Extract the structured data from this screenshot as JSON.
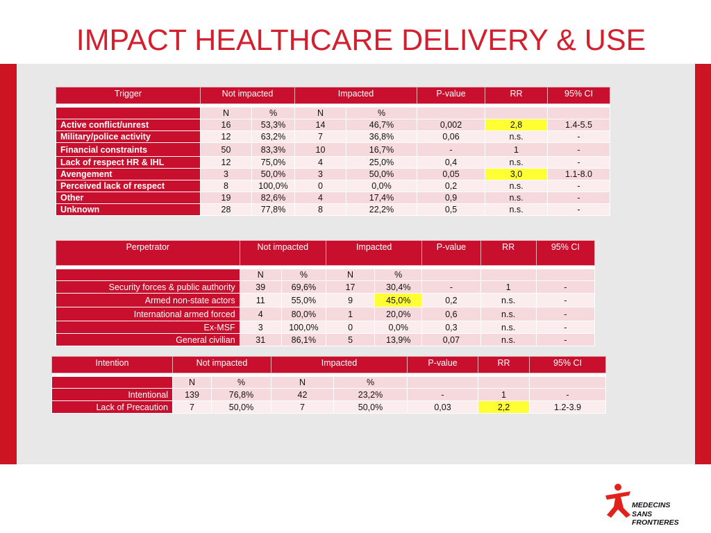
{
  "title": "IMPACT HEALTHCARE DELIVERY & USE",
  "colors": {
    "brand_red": "#c8102e",
    "highlight": "#ffff33",
    "panel": "#e8e8e8"
  },
  "logo": {
    "line1": "MEDECINS",
    "line2": "SANS FRONTIERES",
    "icon": "msf-running-man-icon"
  },
  "tables": [
    {
      "columns": [
        "Trigger",
        "Not impacted",
        "Impacted",
        "P-value",
        "RR",
        "95% CI"
      ],
      "subheaders": [
        "N",
        "%",
        "N",
        "%"
      ],
      "rows": [
        {
          "label": "Active conflict/unrest",
          "cells": [
            "16",
            "53,3%",
            "14",
            "46,7%",
            "0,002",
            "2,8",
            "1.4-5.5"
          ],
          "highlight": [
            5
          ]
        },
        {
          "label": "Military/police activity",
          "cells": [
            "12",
            "63,2%",
            "7",
            "36,8%",
            "0,06",
            "n.s.",
            "-"
          ],
          "highlight": []
        },
        {
          "label": "Financial constraints",
          "cells": [
            "50",
            "83,3%",
            "10",
            "16,7%",
            "-",
            "1",
            "-"
          ],
          "highlight": []
        },
        {
          "label": "Lack of respect HR & IHL",
          "cells": [
            "12",
            "75,0%",
            "4",
            "25,0%",
            "0,4",
            "n.s.",
            "-"
          ],
          "highlight": []
        },
        {
          "label": "Avengement",
          "cells": [
            "3",
            "50,0%",
            "3",
            "50,0%",
            "0,05",
            "3,0",
            "1.1-8.0"
          ],
          "highlight": [
            5
          ]
        },
        {
          "label": "Perceived lack of respect",
          "cells": [
            "8",
            "100,0%",
            "0",
            "0,0%",
            "0,2",
            "n.s.",
            "-"
          ],
          "highlight": []
        },
        {
          "label": "Other",
          "cells": [
            "19",
            "82,6%",
            "4",
            "17,4%",
            "0,9",
            "n.s.",
            "-"
          ],
          "highlight": []
        },
        {
          "label": "Unknown",
          "cells": [
            "28",
            "77,8%",
            "8",
            "22,2%",
            "0,5",
            "n.s.",
            "-"
          ],
          "highlight": []
        }
      ]
    },
    {
      "columns": [
        "Perpetrator",
        "Not impacted",
        "Impacted",
        "P-value",
        "RR",
        "95% CI"
      ],
      "subheaders": [
        "N",
        "%",
        "N",
        "%"
      ],
      "rows": [
        {
          "label": "Security forces & public authority",
          "cells": [
            "39",
            "69,6%",
            "17",
            "30,4%",
            "-",
            "1",
            "-"
          ],
          "highlight": []
        },
        {
          "label": "Armed non-state actors",
          "cells": [
            "11",
            "55,0%",
            "9",
            "45,0%",
            "0,2",
            "n.s.",
            "-"
          ],
          "highlight": [
            3
          ]
        },
        {
          "label": "International armed forced",
          "cells": [
            "4",
            "80,0%",
            "1",
            "20,0%",
            "0,6",
            "n.s.",
            "-"
          ],
          "highlight": []
        },
        {
          "label": "Ex-MSF",
          "cells": [
            "3",
            "100,0%",
            "0",
            "0,0%",
            "0,3",
            "n.s.",
            "-"
          ],
          "highlight": []
        },
        {
          "label": "General civilian",
          "cells": [
            "31",
            "86,1%",
            "5",
            "13,9%",
            "0,07",
            "n.s.",
            "-"
          ],
          "highlight": []
        }
      ]
    },
    {
      "columns": [
        "Intention",
        "Not impacted",
        "Impacted",
        "P-value",
        "RR",
        "95% CI"
      ],
      "subheaders": [
        "N",
        "%",
        "N",
        "%"
      ],
      "rows": [
        {
          "label": "Intentional",
          "cells": [
            "139",
            "76,8%",
            "42",
            "23,2%",
            "-",
            "1",
            "-"
          ],
          "highlight": []
        },
        {
          "label": "Lack of Precaution",
          "cells": [
            "7",
            "50,0%",
            "7",
            "50,0%",
            "0,03",
            "2,2",
            "1.2-3.9"
          ],
          "highlight": [
            5
          ]
        }
      ]
    }
  ]
}
